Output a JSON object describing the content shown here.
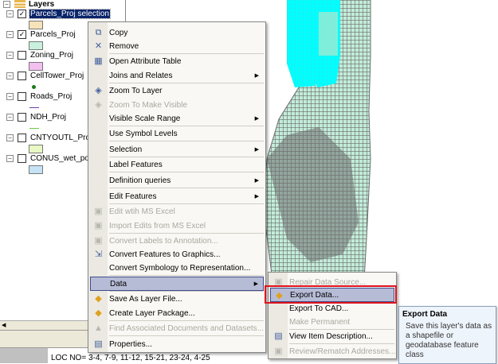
{
  "toc": {
    "root": "Layers",
    "layers": [
      {
        "name": "Parcels_Proj selection",
        "checked": true,
        "selected": true,
        "swatch": "#f7e2b9"
      },
      {
        "name": "Parcels_Proj",
        "checked": true,
        "swatch": "#c9f0dc"
      },
      {
        "name": "Zoning_Proj",
        "checked": false,
        "swatch": "#f2bff0"
      },
      {
        "name": "CellTower_Proj",
        "checked": false,
        "swatch": "point"
      },
      {
        "name": "Roads_Proj",
        "checked": false,
        "swatch": "line-purple"
      },
      {
        "name": "NDH_Proj",
        "checked": false,
        "swatch": "line-green"
      },
      {
        "name": "CNTYOUTL_Proj",
        "checked": false,
        "swatch": "#e9f8c4"
      },
      {
        "name": "CONUS_wet_poly",
        "checked": false,
        "swatch": "#c5e3f4"
      }
    ]
  },
  "map": {
    "selection_color": "#00ffff",
    "parcel_color": "#c2ecd9",
    "outline_color": "#6b6b6b"
  },
  "doc_text": "LOC  NO= 3-4, 7-9, 11-12, 15-21, 23-24, 4-25",
  "context_menu": {
    "items": [
      {
        "label": "Copy",
        "icon": "copy-icon"
      },
      {
        "label": "Remove",
        "icon": "remove-icon"
      },
      {
        "label": "Open Attribute Table",
        "icon": "table-icon"
      },
      {
        "label": "Joins and Relates",
        "submenu": true
      },
      {
        "label": "Zoom To Layer",
        "icon": "zoom-layer-icon"
      },
      {
        "label": "Zoom To Make Visible",
        "icon": "zoom-visible-icon",
        "disabled": true
      },
      {
        "label": "Visible Scale Range",
        "submenu": true
      },
      {
        "label": "Use Symbol Levels"
      },
      {
        "label": "Selection",
        "submenu": true
      },
      {
        "label": "Label Features"
      },
      {
        "label": "Definition queries",
        "submenu": true
      },
      {
        "label": "Edit Features",
        "submenu": true
      },
      {
        "label": "Edit wtih MS Excel",
        "icon": "excel-icon",
        "disabled": true
      },
      {
        "label": "Import Edits from MS Excel",
        "icon": "import-icon",
        "disabled": true
      },
      {
        "label": "Convert Labels to Annotation...",
        "icon": "convert-labels-icon",
        "disabled": true
      },
      {
        "label": "Convert Features to Graphics...",
        "icon": "convert-graphics-icon"
      },
      {
        "label": "Convert Symbology to Representation..."
      },
      {
        "label": "Data",
        "submenu": true,
        "highlighted": true
      },
      {
        "label": "Save As Layer File...",
        "icon": "layer-file-icon"
      },
      {
        "label": "Create Layer Package...",
        "icon": "package-icon"
      },
      {
        "label": "Find Associated Documents and Datasets...",
        "icon": "find-icon",
        "disabled": true
      },
      {
        "label": "Properties...",
        "icon": "properties-icon"
      }
    ]
  },
  "data_submenu": {
    "items": [
      {
        "label": "Repair Data Source...",
        "disabled": true
      },
      {
        "label": "Export Data...",
        "highlighted": true
      },
      {
        "label": "Export To CAD..."
      },
      {
        "label": "Make Permanent",
        "disabled": true
      },
      {
        "label": "View Item Description..."
      },
      {
        "label": "Review/Rematch Addresses...",
        "disabled": true
      }
    ]
  },
  "tooltip": {
    "title": "Export Data",
    "description": "Save this layer's data as a shapefile or geodatabase feature class"
  },
  "highlight_color": "#e0131c"
}
